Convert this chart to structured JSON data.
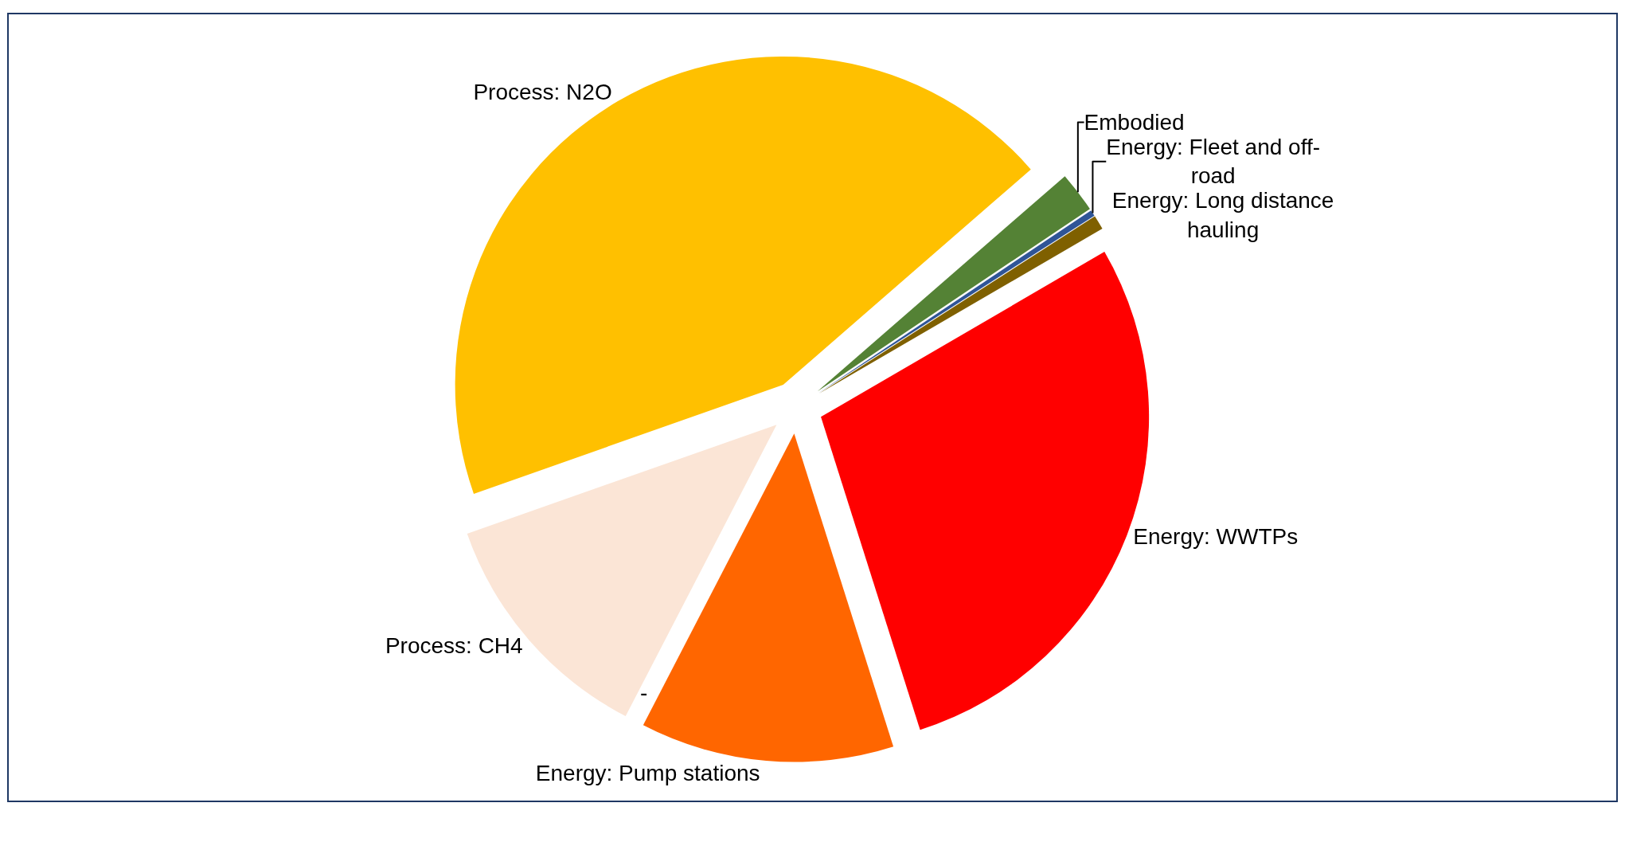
{
  "chart_data": {
    "type": "pie",
    "categories": [
      "Embodied",
      "Energy: Fleet and off-road",
      "Energy: Long distance hauling",
      "Energy: WWTPs",
      "Energy: Pump stations",
      "Process: CH4",
      "Process: N2O"
    ],
    "values": [
      2,
      0.3,
      0.7,
      28.5,
      12.5,
      12,
      44
    ],
    "colors": [
      "#548235",
      "#2f5597",
      "#7f6000",
      "#ff0000",
      "#ff6600",
      "#fbe5d6",
      "#ffc000"
    ],
    "annotations": [
      "-"
    ],
    "legend": false
  }
}
